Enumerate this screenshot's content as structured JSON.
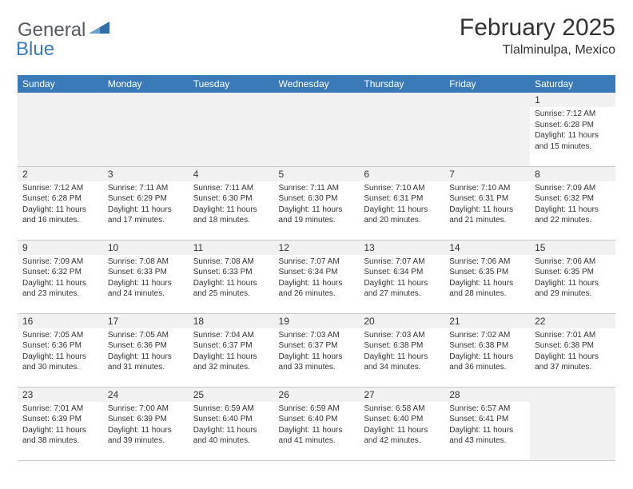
{
  "logo": {
    "text_general": "General",
    "text_blue": "Blue",
    "icon_fill": "#2f6fa8"
  },
  "header": {
    "month_title": "February 2025",
    "location": "Tlalminulpa, Mexico"
  },
  "colors": {
    "header_bar": "#3a7ab8",
    "header_text": "#ffffff",
    "daynum_bg": "#f1f1f1",
    "border": "#c8c8c8",
    "text": "#333333"
  },
  "day_names": [
    "Sunday",
    "Monday",
    "Tuesday",
    "Wednesday",
    "Thursday",
    "Friday",
    "Saturday"
  ],
  "weeks": [
    [
      null,
      null,
      null,
      null,
      null,
      null,
      {
        "n": "1",
        "sunrise": "Sunrise: 7:12 AM",
        "sunset": "Sunset: 6:28 PM",
        "daylight": "Daylight: 11 hours and 15 minutes."
      }
    ],
    [
      {
        "n": "2",
        "sunrise": "Sunrise: 7:12 AM",
        "sunset": "Sunset: 6:28 PM",
        "daylight": "Daylight: 11 hours and 16 minutes."
      },
      {
        "n": "3",
        "sunrise": "Sunrise: 7:11 AM",
        "sunset": "Sunset: 6:29 PM",
        "daylight": "Daylight: 11 hours and 17 minutes."
      },
      {
        "n": "4",
        "sunrise": "Sunrise: 7:11 AM",
        "sunset": "Sunset: 6:30 PM",
        "daylight": "Daylight: 11 hours and 18 minutes."
      },
      {
        "n": "5",
        "sunrise": "Sunrise: 7:11 AM",
        "sunset": "Sunset: 6:30 PM",
        "daylight": "Daylight: 11 hours and 19 minutes."
      },
      {
        "n": "6",
        "sunrise": "Sunrise: 7:10 AM",
        "sunset": "Sunset: 6:31 PM",
        "daylight": "Daylight: 11 hours and 20 minutes."
      },
      {
        "n": "7",
        "sunrise": "Sunrise: 7:10 AM",
        "sunset": "Sunset: 6:31 PM",
        "daylight": "Daylight: 11 hours and 21 minutes."
      },
      {
        "n": "8",
        "sunrise": "Sunrise: 7:09 AM",
        "sunset": "Sunset: 6:32 PM",
        "daylight": "Daylight: 11 hours and 22 minutes."
      }
    ],
    [
      {
        "n": "9",
        "sunrise": "Sunrise: 7:09 AM",
        "sunset": "Sunset: 6:32 PM",
        "daylight": "Daylight: 11 hours and 23 minutes."
      },
      {
        "n": "10",
        "sunrise": "Sunrise: 7:08 AM",
        "sunset": "Sunset: 6:33 PM",
        "daylight": "Daylight: 11 hours and 24 minutes."
      },
      {
        "n": "11",
        "sunrise": "Sunrise: 7:08 AM",
        "sunset": "Sunset: 6:33 PM",
        "daylight": "Daylight: 11 hours and 25 minutes."
      },
      {
        "n": "12",
        "sunrise": "Sunrise: 7:07 AM",
        "sunset": "Sunset: 6:34 PM",
        "daylight": "Daylight: 11 hours and 26 minutes."
      },
      {
        "n": "13",
        "sunrise": "Sunrise: 7:07 AM",
        "sunset": "Sunset: 6:34 PM",
        "daylight": "Daylight: 11 hours and 27 minutes."
      },
      {
        "n": "14",
        "sunrise": "Sunrise: 7:06 AM",
        "sunset": "Sunset: 6:35 PM",
        "daylight": "Daylight: 11 hours and 28 minutes."
      },
      {
        "n": "15",
        "sunrise": "Sunrise: 7:06 AM",
        "sunset": "Sunset: 6:35 PM",
        "daylight": "Daylight: 11 hours and 29 minutes."
      }
    ],
    [
      {
        "n": "16",
        "sunrise": "Sunrise: 7:05 AM",
        "sunset": "Sunset: 6:36 PM",
        "daylight": "Daylight: 11 hours and 30 minutes."
      },
      {
        "n": "17",
        "sunrise": "Sunrise: 7:05 AM",
        "sunset": "Sunset: 6:36 PM",
        "daylight": "Daylight: 11 hours and 31 minutes."
      },
      {
        "n": "18",
        "sunrise": "Sunrise: 7:04 AM",
        "sunset": "Sunset: 6:37 PM",
        "daylight": "Daylight: 11 hours and 32 minutes."
      },
      {
        "n": "19",
        "sunrise": "Sunrise: 7:03 AM",
        "sunset": "Sunset: 6:37 PM",
        "daylight": "Daylight: 11 hours and 33 minutes."
      },
      {
        "n": "20",
        "sunrise": "Sunrise: 7:03 AM",
        "sunset": "Sunset: 6:38 PM",
        "daylight": "Daylight: 11 hours and 34 minutes."
      },
      {
        "n": "21",
        "sunrise": "Sunrise: 7:02 AM",
        "sunset": "Sunset: 6:38 PM",
        "daylight": "Daylight: 11 hours and 36 minutes."
      },
      {
        "n": "22",
        "sunrise": "Sunrise: 7:01 AM",
        "sunset": "Sunset: 6:38 PM",
        "daylight": "Daylight: 11 hours and 37 minutes."
      }
    ],
    [
      {
        "n": "23",
        "sunrise": "Sunrise: 7:01 AM",
        "sunset": "Sunset: 6:39 PM",
        "daylight": "Daylight: 11 hours and 38 minutes."
      },
      {
        "n": "24",
        "sunrise": "Sunrise: 7:00 AM",
        "sunset": "Sunset: 6:39 PM",
        "daylight": "Daylight: 11 hours and 39 minutes."
      },
      {
        "n": "25",
        "sunrise": "Sunrise: 6:59 AM",
        "sunset": "Sunset: 6:40 PM",
        "daylight": "Daylight: 11 hours and 40 minutes."
      },
      {
        "n": "26",
        "sunrise": "Sunrise: 6:59 AM",
        "sunset": "Sunset: 6:40 PM",
        "daylight": "Daylight: 11 hours and 41 minutes."
      },
      {
        "n": "27",
        "sunrise": "Sunrise: 6:58 AM",
        "sunset": "Sunset: 6:40 PM",
        "daylight": "Daylight: 11 hours and 42 minutes."
      },
      {
        "n": "28",
        "sunrise": "Sunrise: 6:57 AM",
        "sunset": "Sunset: 6:41 PM",
        "daylight": "Daylight: 11 hours and 43 minutes."
      },
      null
    ]
  ]
}
